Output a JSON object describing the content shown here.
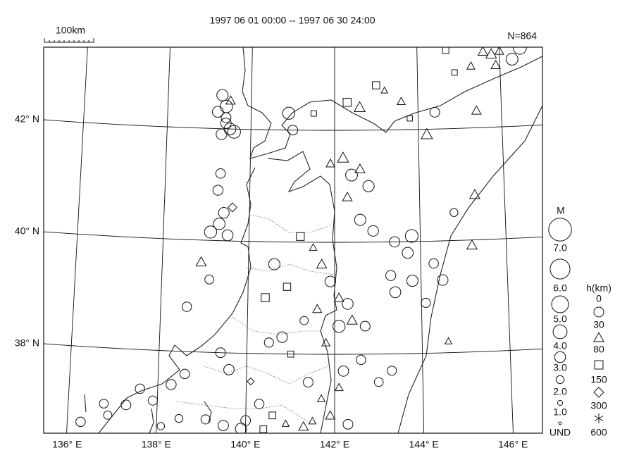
{
  "map": {
    "title": "1997 06 01 00:00 -- 1997 06 30 24:00",
    "scale_label": "100km",
    "count_label": "N=864",
    "lat_ticks": [
      {
        "value": 38,
        "label": "38° N"
      },
      {
        "value": 40,
        "label": "40° N"
      },
      {
        "value": 42,
        "label": "42° N"
      }
    ],
    "lon_ticks": [
      {
        "value": 136,
        "label": "136° E"
      },
      {
        "value": 138,
        "label": "138° E"
      },
      {
        "value": 140,
        "label": "140° E"
      },
      {
        "value": 142,
        "label": "142° E"
      },
      {
        "value": 144,
        "label": "144° E"
      },
      {
        "value": 146,
        "label": "146° E"
      }
    ],
    "magnitude_legend": {
      "title": "M",
      "levels": [
        {
          "value": 7,
          "label": "7.0"
        },
        {
          "value": 6,
          "label": "6.0"
        },
        {
          "value": 5,
          "label": "5.0"
        },
        {
          "value": 4,
          "label": "4.0"
        },
        {
          "value": 3,
          "label": "3.0"
        },
        {
          "value": 2,
          "label": "2.0"
        },
        {
          "value": 1,
          "label": "1.0"
        }
      ],
      "undetermined": "UND"
    },
    "depth_legend": {
      "title": "h(km)",
      "levels": [
        0,
        30,
        80,
        150,
        300,
        600
      ]
    },
    "events": {
      "lon": [
        139.3,
        139.4,
        139.2,
        139.4,
        139.5,
        139.3,
        139.6,
        139.4,
        139.5,
        139.3,
        139.25,
        139.4,
        139.3,
        139.1,
        139.5,
        139.6,
        140.9,
        141.0,
        141.5,
        142.3,
        142.6,
        143.0,
        143.2,
        143.6,
        143.8,
        144.4,
        144.2,
        145.4,
        145.6,
        145.8,
        146.0,
        146.3,
        146.5,
        145.3,
        144.7,
        145.9,
        144.9,
        142.2,
        142.4,
        142.6,
        141.9,
        142.8,
        142.3,
        142.6,
        142.9,
        143.4,
        143.8,
        143.7,
        143.3,
        143.4,
        143.8,
        144.3,
        144.5,
        144.1,
        144.6,
        145.3,
        145.2,
        144.8,
        141.2,
        141.5,
        141.7,
        141.9,
        142.1,
        142.3,
        142.4,
        142.1,
        141.6,
        141.3,
        140.9,
        140.6,
        140.4,
        140.8,
        140.5,
        141.0,
        141.8,
        142.2,
        142.6,
        142.1,
        143.0,
        143.3,
        142.7,
        141.4,
        141.7,
        138.9,
        139.1,
        138.6,
        139.4,
        139.6,
        138.6,
        138.3,
        137.9,
        137.3,
        136.8,
        137.6,
        136.9,
        136.3,
        139.9,
        140.0,
        140.3,
        140.6,
        140.9,
        141.3,
        141.5,
        141.9,
        142.3,
        139.1,
        138.5,
        138.1,
        139.5,
        140.4,
        140.1
      ],
      "lat": [
        42.6,
        42.4,
        42.3,
        42.1,
        42.0,
        41.9,
        41.95,
        42.2,
        42.5,
        41.2,
        40.9,
        40.5,
        40.3,
        40.15,
        40.1,
        40.6,
        42.3,
        42.0,
        42.3,
        42.5,
        42.4,
        42.8,
        42.7,
        42.5,
        42.2,
        42.3,
        41.9,
        42.3,
        43.35,
        43.3,
        43.35,
        43.2,
        43.4,
        43.1,
        43.4,
        43.1,
        43.0,
        41.5,
        41.2,
        41.3,
        41.4,
        41.0,
        40.8,
        40.4,
        40.2,
        40.0,
        40.1,
        39.8,
        39.4,
        39.1,
        39.3,
        39.6,
        39.3,
        38.9,
        38.2,
        40.8,
        39.9,
        40.5,
        40.1,
        39.9,
        39.6,
        39.3,
        39.0,
        38.9,
        38.6,
        38.5,
        38.8,
        38.6,
        39.2,
        39.6,
        39.0,
        38.3,
        38.2,
        38.0,
        38.2,
        37.7,
        37.9,
        37.4,
        37.5,
        37.7,
        38.5,
        37.5,
        37.2,
        39.6,
        39.3,
        38.8,
        38.0,
        37.7,
        37.6,
        37.4,
        37.1,
        37.0,
        37.0,
        37.3,
        36.8,
        36.65,
        36.65,
        36.8,
        37.1,
        36.9,
        36.75,
        36.7,
        36.8,
        36.9,
        36.75,
        36.8,
        36.8,
        36.65,
        36.7,
        36.65,
        37.5
      ],
      "m": [
        3.1,
        3.5,
        3.0,
        2.8,
        3.3,
        2.9,
        3.6,
        2.6,
        2.4,
        2.5,
        2.7,
        2.9,
        3.2,
        3.4,
        3.0,
        2.3,
        3.4,
        2.6,
        1.5,
        2.5,
        3.0,
        2.2,
        1.5,
        2.0,
        1.4,
        2.6,
        3.1,
        2.4,
        2.5,
        2.8,
        2.2,
        3.3,
        3.8,
        2.0,
        1.8,
        2.4,
        1.5,
        3.0,
        3.3,
        2.6,
        2.2,
        3.1,
        2.5,
        3.1,
        2.9,
        2.8,
        3.6,
        3.0,
        2.7,
        3.0,
        3.1,
        2.5,
        2.9,
        2.4,
        1.6,
        2.7,
        2.7,
        2.0,
        2.4,
        1.8,
        2.6,
        2.9,
        2.5,
        3.0,
        2.7,
        3.4,
        2.3,
        2.1,
        2.2,
        3.1,
        2.5,
        2.9,
        2.4,
        1.7,
        2.0,
        2.8,
        2.5,
        2.0,
        2.3,
        2.4,
        2.6,
        2.6,
        1.9,
        2.7,
        2.3,
        2.5,
        2.6,
        2.8,
        2.5,
        2.7,
        2.4,
        2.6,
        2.3,
        2.5,
        2.1,
        2.5,
        3.1,
        2.6,
        2.5,
        2.0,
        1.6,
        2.5,
        1.7,
        2.4,
        2.6,
        2.4,
        2.0,
        1.8,
        2.8,
        2.0,
        1.6
      ],
      "h": [
        10,
        12,
        8,
        15,
        10,
        20,
        10,
        5,
        60,
        10,
        12,
        10,
        15,
        10,
        10,
        200,
        10,
        10,
        100,
        90,
        45,
        110,
        60,
        50,
        120,
        20,
        50,
        55,
        50,
        60,
        45,
        10,
        20,
        40,
        90,
        70,
        120,
        40,
        10,
        50,
        60,
        15,
        55,
        10,
        20,
        10,
        10,
        15,
        10,
        20,
        10,
        10,
        10,
        10,
        40,
        50,
        50,
        10,
        100,
        60,
        45,
        10,
        55,
        10,
        45,
        10,
        55,
        10,
        90,
        10,
        90,
        10,
        10,
        100,
        50,
        10,
        10,
        45,
        10,
        10,
        10,
        10,
        60,
        40,
        10,
        10,
        10,
        10,
        10,
        10,
        10,
        10,
        10,
        10,
        10,
        10,
        10,
        10,
        10,
        90,
        60,
        45,
        60,
        40,
        10,
        10,
        10,
        10,
        10,
        120,
        160
      ]
    }
  }
}
